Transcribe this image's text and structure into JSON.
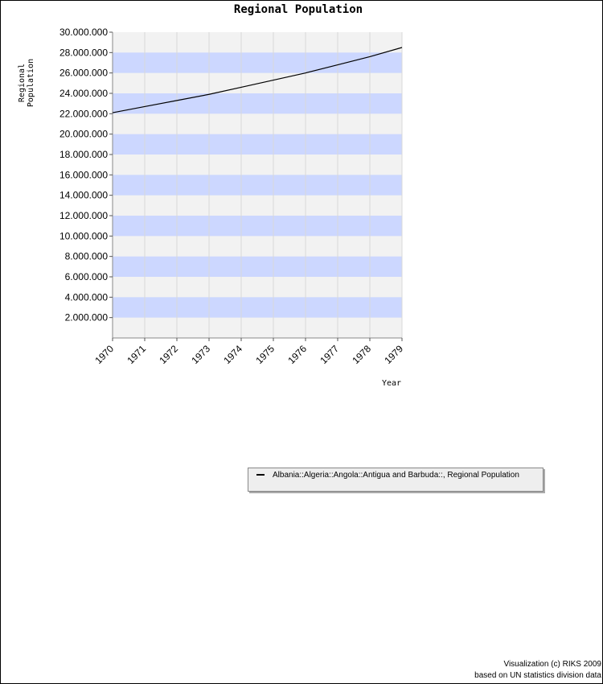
{
  "chart_data": {
    "type": "line",
    "title": "Regional Population",
    "ylabel": "Regional Population",
    "xlabel": "Year",
    "ylim": [
      0,
      30000000
    ],
    "y_ticks": [
      2000000,
      4000000,
      6000000,
      8000000,
      10000000,
      12000000,
      14000000,
      16000000,
      18000000,
      20000000,
      22000000,
      24000000,
      26000000,
      28000000,
      30000000
    ],
    "y_tick_labels": [
      "2.000.000",
      "4.000.000",
      "6.000.000",
      "8.000.000",
      "10.000.000",
      "12.000.000",
      "14.000.000",
      "16.000.000",
      "18.000.000",
      "20.000.000",
      "22.000.000",
      "24.000.000",
      "26.000.000",
      "28.000.000",
      "30.000.000"
    ],
    "x": [
      "1970",
      "1971",
      "1972",
      "1973",
      "1974",
      "1975",
      "1976",
      "1977",
      "1978",
      "1979"
    ],
    "series": [
      {
        "name": "Albania::Algeria::Angola::Antigua and Barbuda::, Regional Population",
        "values": [
          22100000,
          22700000,
          23300000,
          23900000,
          24600000,
          25300000,
          26000000,
          26800000,
          27600000,
          28500000
        ],
        "color": "#000000"
      }
    ],
    "grid": true,
    "band_colors": [
      "#f2f2f2",
      "#ccd7ff"
    ],
    "legend_position": "below"
  },
  "footer": {
    "credit_line1": "Visualization (c) RIKS 2009",
    "credit_line2": "based on UN statistics division data"
  }
}
